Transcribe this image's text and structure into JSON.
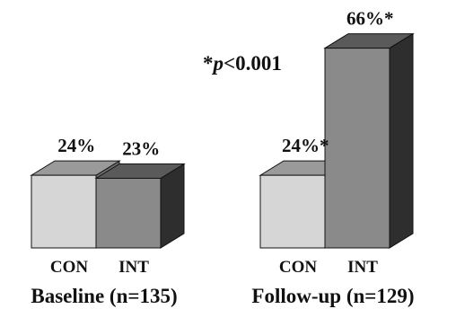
{
  "chart_data": {
    "type": "bar",
    "title": "",
    "xlabel": "",
    "ylabel": "",
    "ylim": [
      0,
      70
    ],
    "grid": false,
    "annotation": "*p<0.001",
    "series_styles": {
      "CON": {
        "front": "#d6d6d6",
        "top": "#9a9a9a",
        "side": "#6f6f6f"
      },
      "INT": {
        "front": "#8a8a8a",
        "top": "#5a5a5a",
        "side": "#2e2e2e"
      }
    },
    "groups": [
      {
        "name": "Baseline (n=135)",
        "bars": [
          {
            "category": "CON",
            "value": 24,
            "label": "24%"
          },
          {
            "category": "INT",
            "value": 23,
            "label": "23%"
          }
        ]
      },
      {
        "name": "Follow-up (n=129)",
        "bars": [
          {
            "category": "CON",
            "value": 24,
            "label": "24%*"
          },
          {
            "category": "INT",
            "value": 66,
            "label": "66%*"
          }
        ]
      }
    ]
  }
}
